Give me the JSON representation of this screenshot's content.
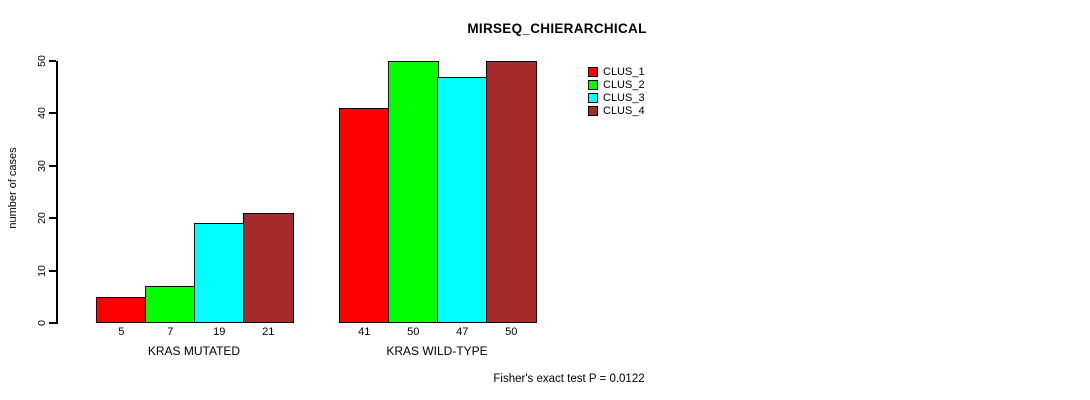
{
  "title": "MIRSEQ_CHIERARCHICAL",
  "annotation": "Fisher's exact test P = 0.0122",
  "colors": {
    "clus_1": "#ff0000",
    "clus_2": "#00ff00",
    "clus_3": "#00ffff",
    "clus_4": "#a52a2a",
    "axis": "#000000",
    "background": "#ffffff"
  },
  "chart_data": {
    "type": "bar",
    "title": "MIRSEQ_CHIERARCHICAL",
    "xlabel": "",
    "ylabel": "number of cases",
    "ylim": [
      0,
      50
    ],
    "yticks": [
      0,
      10,
      20,
      30,
      40,
      50
    ],
    "grid": false,
    "legend_position": "top-right",
    "categories": [
      "KRAS MUTATED",
      "KRAS WILD-TYPE"
    ],
    "series": [
      {
        "name": "CLUS_1",
        "color": "#ff0000",
        "values": [
          5,
          41
        ]
      },
      {
        "name": "CLUS_2",
        "color": "#00ff00",
        "values": [
          7,
          50
        ]
      },
      {
        "name": "CLUS_3",
        "color": "#00ffff",
        "values": [
          19,
          47
        ]
      },
      {
        "name": "CLUS_4",
        "color": "#a52a2a",
        "values": [
          21,
          50
        ]
      }
    ],
    "bar_value_labels": [
      [
        5,
        7,
        19,
        21
      ],
      [
        41,
        50,
        47,
        50
      ]
    ],
    "annotation": "Fisher's exact test P = 0.0122"
  }
}
